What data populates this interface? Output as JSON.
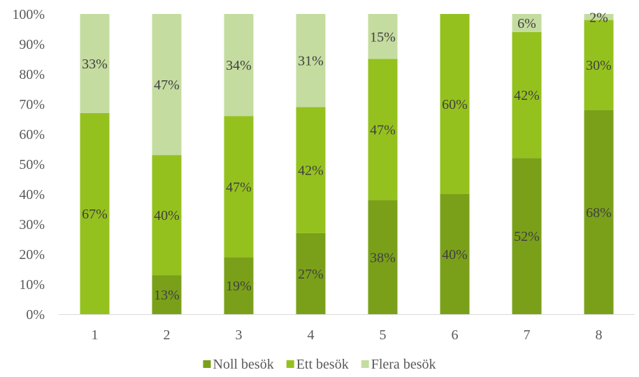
{
  "chart_data": {
    "type": "bar",
    "stacked": "percent",
    "categories": [
      "1",
      "2",
      "3",
      "4",
      "5",
      "6",
      "7",
      "8"
    ],
    "series": [
      {
        "name": "Noll besök",
        "color": "#7aa01a",
        "values": [
          0,
          13,
          19,
          27,
          38,
          40,
          52,
          68
        ],
        "labels": [
          "",
          "13%",
          "19%",
          "27%",
          "38%",
          "40%",
          "52%",
          "68%"
        ]
      },
      {
        "name": "Ett besök",
        "color": "#95c11f",
        "values": [
          67,
          40,
          47,
          42,
          47,
          60,
          42,
          30
        ],
        "labels": [
          "67%",
          "40%",
          "47%",
          "42%",
          "47%",
          "60%",
          "42%",
          "30%"
        ]
      },
      {
        "name": "Flera besök",
        "color": "#c5dca0",
        "values": [
          33,
          47,
          34,
          31,
          15,
          0,
          6,
          2
        ],
        "labels": [
          "33%",
          "47%",
          "34%",
          "31%",
          "15%",
          "",
          "6%",
          "2%"
        ]
      }
    ],
    "ylim": [
      0,
      100
    ],
    "yticks": [
      "0%",
      "10%",
      "20%",
      "30%",
      "40%",
      "50%",
      "60%",
      "70%",
      "80%",
      "90%",
      "100%"
    ],
    "title": "",
    "xlabel": "",
    "ylabel": "",
    "grid": false,
    "legend": "bottom"
  }
}
